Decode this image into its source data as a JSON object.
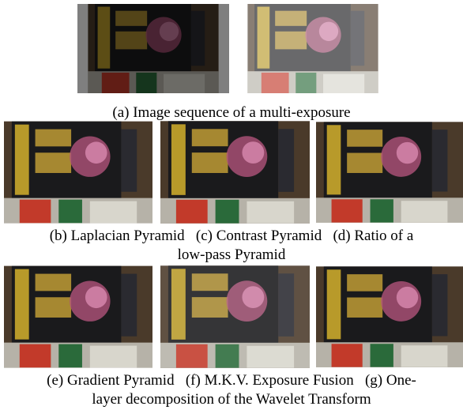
{
  "figure": {
    "caption_a": "(a) Image sequence of a multi-exposure",
    "row2_caption_lines": [
      "(b) Laplacian Pyramid   (c) Contrast Pyramid   (d) Ratio of a",
      "low-pass Pyramid"
    ],
    "row3_caption_lines": [
      "(e) Gradient Pyramid   (f) M.K.V. Exposure Fusion   (g) One-",
      "layer decomposition of the Wavelet Transform"
    ]
  }
}
